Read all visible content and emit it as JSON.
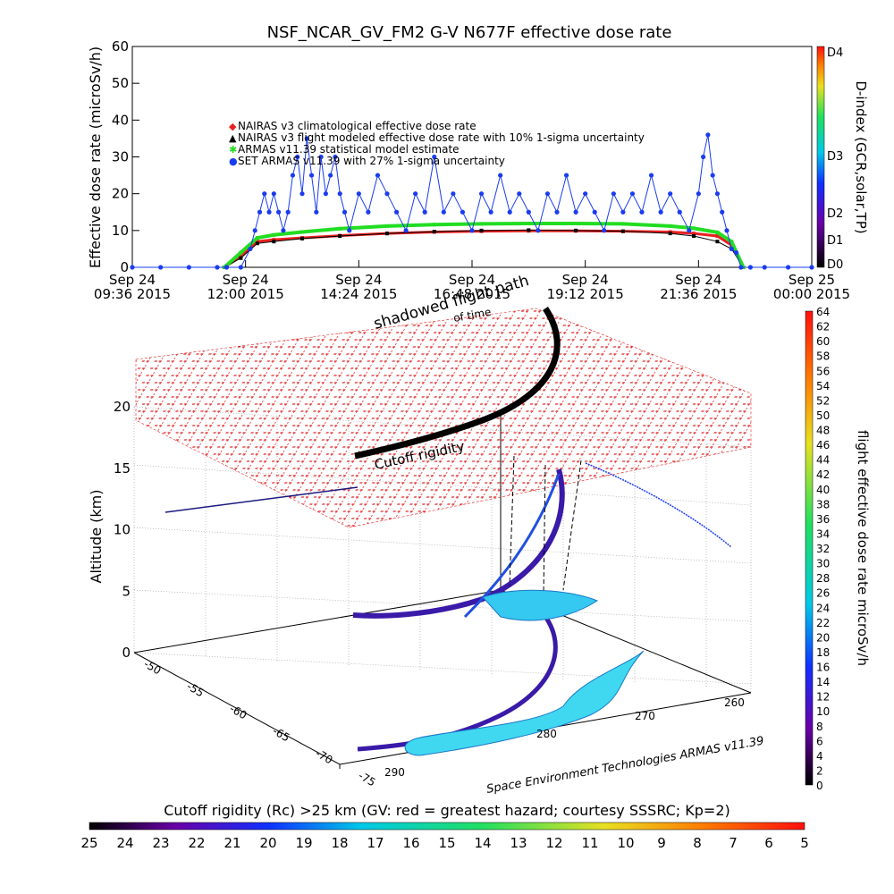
{
  "chart_data": [
    {
      "type": "line",
      "title": "NSF_NCAR_GV_FM2 G-V    N677F  effective dose rate",
      "ylabel": "Effective dose rate (microSv/h)",
      "ylim": [
        0,
        60
      ],
      "y_ticks": [
        "0",
        "10",
        "20",
        "30",
        "40",
        "50",
        "60"
      ],
      "x_ticks": [
        [
          "Sep 24",
          "09:36 2015"
        ],
        [
          "Sep 24",
          "12:00 2015"
        ],
        [
          "Sep 24",
          "14:24 2015"
        ],
        [
          "Sep 24",
          "16:48 2015"
        ],
        [
          "Sep 24",
          "19:12 2015"
        ],
        [
          "Sep 24",
          "21:36 2015"
        ],
        [
          "Sep 25",
          "00:00 2015"
        ]
      ],
      "xlim_hours": [
        9.6,
        24.0
      ],
      "legend": [
        {
          "label": "NAIRAS v3 climatological effective dose rate",
          "color": "#e82020",
          "marker": "◆"
        },
        {
          "label": "NAIRAS v3 flight modeled effective dose rate with 10% 1-sigma uncertainty",
          "color": "#000000",
          "marker": "▲"
        },
        {
          "label": "ARMAS v11.39 statistical model estimate",
          "color": "#22dd22",
          "marker": "✱"
        },
        {
          "label": "SET ARMAS v11.39 with 27% 1-sigma uncertainty",
          "color": "#1a3cf0",
          "marker": "●"
        }
      ],
      "series": [
        {
          "name": "NAIRAS v3 climatological effective dose rate",
          "color": "#e82020",
          "x": [
            11.55,
            11.9,
            12.25,
            12.6,
            13.2,
            14.0,
            15.0,
            16.0,
            17.0,
            18.0,
            19.0,
            20.0,
            21.0,
            21.5,
            22.0,
            22.3,
            22.55
          ],
          "y": [
            0,
            3,
            7,
            7.5,
            8,
            8.6,
            9.2,
            9.6,
            9.8,
            9.9,
            9.9,
            9.8,
            9.6,
            9.2,
            8.5,
            6,
            0
          ]
        },
        {
          "name": "NAIRAS v3 flight modeled effective dose rate with 10% 1-sigma uncertainty",
          "color": "#000000",
          "x": [
            11.55,
            11.9,
            12.25,
            12.6,
            13.2,
            14.0,
            15.0,
            16.0,
            17.0,
            18.0,
            19.0,
            20.0,
            21.0,
            21.5,
            22.0,
            22.3,
            22.55
          ],
          "y": [
            0,
            2.5,
            6.5,
            7,
            7.8,
            8.5,
            9.2,
            9.7,
            10,
            10.1,
            10,
            9.8,
            9.2,
            8.5,
            7,
            5,
            0
          ]
        },
        {
          "name": "ARMAS v11.39 statistical model estimate",
          "color": "#22dd22",
          "x": [
            11.55,
            11.9,
            12.25,
            12.6,
            13.2,
            14.0,
            15.0,
            16.0,
            17.0,
            18.0,
            19.0,
            20.0,
            21.0,
            21.5,
            22.0,
            22.3,
            22.55
          ],
          "y": [
            0,
            4,
            8,
            8.8,
            9.6,
            10.5,
            11.2,
            11.6,
            11.8,
            11.9,
            11.9,
            11.8,
            11.2,
            10.6,
            9.5,
            7,
            0
          ]
        },
        {
          "name": "SET ARMAS v11.39 with 27% 1-sigma uncertainty",
          "color": "#1a3cf0",
          "x": [
            9.6,
            10.2,
            10.8,
            11.4,
            11.6,
            11.9,
            12.1,
            12.2,
            12.3,
            12.4,
            12.5,
            12.6,
            12.7,
            12.8,
            12.9,
            13.0,
            13.1,
            13.2,
            13.3,
            13.4,
            13.5,
            13.6,
            13.7,
            13.8,
            13.9,
            14.0,
            14.1,
            14.2,
            14.4,
            14.6,
            14.8,
            15.0,
            15.2,
            15.4,
            15.6,
            15.8,
            16.0,
            16.2,
            16.4,
            16.6,
            16.8,
            17.0,
            17.2,
            17.4,
            17.6,
            17.8,
            18.0,
            18.2,
            18.4,
            18.6,
            18.8,
            19.0,
            19.2,
            19.4,
            19.6,
            19.8,
            20.0,
            20.2,
            20.4,
            20.6,
            20.8,
            21.0,
            21.2,
            21.4,
            21.6,
            21.7,
            21.8,
            21.9,
            22.0,
            22.1,
            22.2,
            22.3,
            22.4,
            22.5,
            22.7,
            23.0,
            23.5,
            24.0
          ],
          "y": [
            0,
            0,
            0,
            0,
            0,
            0,
            5,
            10,
            15,
            20,
            15,
            20,
            15,
            10,
            15,
            25,
            30,
            20,
            35,
            25,
            15,
            30,
            20,
            25,
            30,
            20,
            15,
            10,
            20,
            15,
            25,
            20,
            15,
            10,
            20,
            15,
            30,
            15,
            20,
            15,
            10,
            20,
            15,
            25,
            15,
            20,
            15,
            10,
            20,
            15,
            25,
            15,
            20,
            15,
            10,
            20,
            15,
            20,
            15,
            25,
            15,
            20,
            15,
            10,
            20,
            30,
            36,
            25,
            20,
            15,
            10,
            5,
            4,
            0,
            0,
            0,
            0,
            0
          ]
        }
      ],
      "right_axis": {
        "label": "D-index (GCR,solar,TP)",
        "ticks": [
          "D0",
          "D1",
          "D2",
          "D3",
          "D4"
        ]
      }
    },
    {
      "type": "scatter",
      "zlabel": "Altitude (km)",
      "z_ticks": [
        "0",
        "5",
        "10",
        "15",
        "20"
      ],
      "lat_ticks": [
        "-50",
        "-55",
        "-60",
        "-65",
        "-70",
        "-75"
      ],
      "lon_ticks": [
        "260",
        "270",
        "280",
        "290"
      ],
      "annotations": [
        "shadowed flight path",
        "of time",
        "Cutoff rigidity",
        "Space Environment Technologies ARMAS v11.39"
      ],
      "colorbar_right": {
        "label": "flight effective dose rate microSv/h",
        "range": [
          0,
          64
        ],
        "ticks": [
          "0",
          "2",
          "4",
          "6",
          "8",
          "10",
          "12",
          "14",
          "16",
          "18",
          "20",
          "22",
          "24",
          "26",
          "28",
          "30",
          "32",
          "34",
          "36",
          "38",
          "40",
          "42",
          "44",
          "46",
          "48",
          "50",
          "52",
          "54",
          "56",
          "58",
          "60",
          "62",
          "64"
        ]
      },
      "colorbar_bottom": {
        "title": "Cutoff rigidity (Rc) >25 km (GV: red = greatest hazard; courtesy SSSRC; Kp=2)",
        "ticks": [
          "25",
          "24",
          "23",
          "22",
          "21",
          "20",
          "19",
          "18",
          "17",
          "16",
          "15",
          "14",
          "13",
          "12",
          "11",
          "10",
          "9",
          "8",
          "7",
          "6",
          "5"
        ]
      }
    }
  ]
}
